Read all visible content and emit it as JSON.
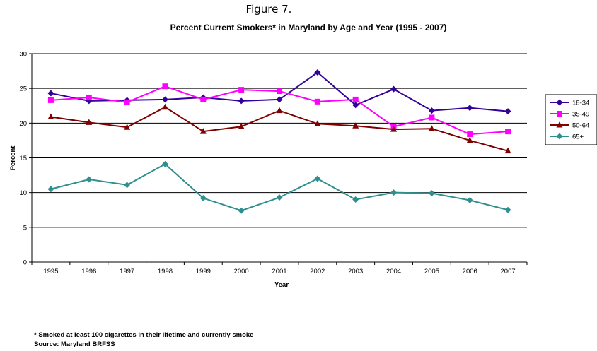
{
  "figure_label": "Figure 7.",
  "footnote": "* Smoked at least 100 cigarettes in their lifetime and currently smoke",
  "source": "Source: Maryland BRFSS",
  "chart_data": {
    "type": "line",
    "title": "Percent Current Smokers* in Maryland by Age and Year (1995 - 2007)",
    "xlabel": "Year",
    "ylabel": "Percent",
    "ylim": [
      0,
      30
    ],
    "yticks": [
      0,
      5,
      10,
      15,
      20,
      25,
      30
    ],
    "grid": "horizontal",
    "legend_position": "right",
    "categories": [
      "1995",
      "1996",
      "1997",
      "1998",
      "1999",
      "2000",
      "2001",
      "2002",
      "2003",
      "2004",
      "2005",
      "2006",
      "2007"
    ],
    "series": [
      {
        "name": "18-34",
        "color": "#330099",
        "marker": "diamond",
        "values": [
          24.3,
          23.2,
          23.3,
          23.4,
          23.7,
          23.2,
          23.4,
          27.3,
          22.6,
          24.9,
          21.8,
          22.2,
          21.7
        ]
      },
      {
        "name": "35-49",
        "color": "#ff00ff",
        "marker": "square",
        "values": [
          23.3,
          23.7,
          23.0,
          25.3,
          23.4,
          24.8,
          24.6,
          23.1,
          23.4,
          19.5,
          20.8,
          18.4,
          18.8
        ]
      },
      {
        "name": "50-64",
        "color": "#800000",
        "marker": "triangle",
        "values": [
          20.9,
          20.1,
          19.4,
          22.3,
          18.8,
          19.5,
          21.8,
          19.9,
          19.6,
          19.1,
          19.2,
          17.5,
          16.0
        ]
      },
      {
        "name": "65+",
        "color": "#2f8f8f",
        "marker": "diamond",
        "values": [
          10.5,
          11.9,
          11.1,
          14.1,
          9.2,
          7.4,
          9.3,
          12.0,
          9.0,
          10.0,
          9.9,
          8.9,
          7.5
        ]
      }
    ]
  }
}
